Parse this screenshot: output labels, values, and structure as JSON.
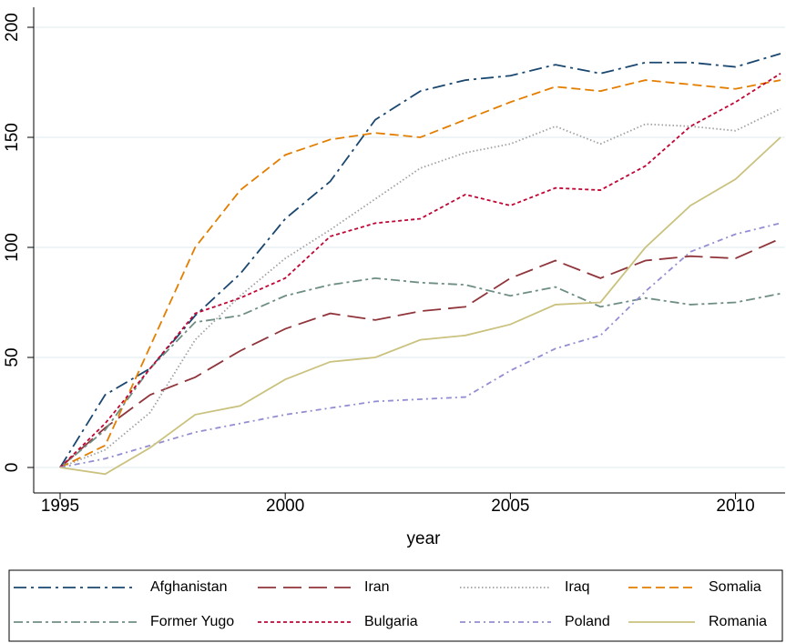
{
  "chart_data": {
    "type": "line",
    "xlabel": "year",
    "x": [
      1995,
      1996,
      1997,
      1998,
      1999,
      2000,
      2001,
      2002,
      2003,
      2004,
      2005,
      2006,
      2007,
      2008,
      2009,
      2010,
      2011
    ],
    "xlim": [
      1995,
      2011
    ],
    "xticks": [
      1995,
      2000,
      2005,
      2010
    ],
    "ylim": [
      0,
      200
    ],
    "yticks": [
      0,
      50,
      100,
      150,
      200
    ],
    "grid": true,
    "legend": "bottom",
    "series": [
      {
        "name": "Afghanistan",
        "color": "#1a476f",
        "dash": "14 5 3 5",
        "values": [
          0,
          33,
          45,
          69,
          88,
          113,
          130,
          158,
          171,
          176,
          178,
          183,
          179,
          184,
          184,
          182,
          188
        ]
      },
      {
        "name": "Iran",
        "color": "#90353b",
        "dash": "20 8",
        "values": [
          0,
          18,
          33,
          41,
          53,
          63,
          70,
          67,
          71,
          73,
          86,
          94,
          86,
          94,
          96,
          95,
          104
        ]
      },
      {
        "name": "Iraq",
        "color": "#a0a0a0",
        "dash": "1.5 2.5",
        "values": [
          0,
          8,
          25,
          58,
          78,
          95,
          108,
          122,
          136,
          143,
          147,
          155,
          147,
          156,
          155,
          153,
          163
        ]
      },
      {
        "name": "Somalia",
        "color": "#e37e00",
        "dash": "10 5",
        "values": [
          0,
          10,
          55,
          100,
          126,
          142,
          149,
          152,
          150,
          158,
          166,
          173,
          171,
          176,
          174,
          172,
          176
        ]
      },
      {
        "name": "Former Yugo",
        "color": "#6e8e84",
        "dash": "10 4 3 4",
        "values": [
          0,
          17,
          45,
          66,
          69,
          78,
          83,
          86,
          84,
          83,
          78,
          82,
          73,
          77,
          74,
          75,
          79
        ]
      },
      {
        "name": "Bulgaria",
        "color": "#c10534",
        "dash": "4 3",
        "values": [
          0,
          20,
          45,
          70,
          77,
          86,
          105,
          111,
          113,
          124,
          119,
          127,
          126,
          137,
          155,
          166,
          179
        ]
      },
      {
        "name": "Poland",
        "color": "#938dd2",
        "dash": "6 4 2 4",
        "values": [
          0,
          4,
          10,
          16,
          20,
          24,
          27,
          30,
          31,
          32,
          44,
          54,
          60,
          80,
          98,
          106,
          111
        ]
      },
      {
        "name": "Romania",
        "color": "#cac27e",
        "dash": "",
        "values": [
          0,
          -3,
          9,
          24,
          28,
          40,
          48,
          50,
          58,
          60,
          65,
          74,
          75,
          100,
          119,
          131,
          150
        ]
      }
    ]
  }
}
